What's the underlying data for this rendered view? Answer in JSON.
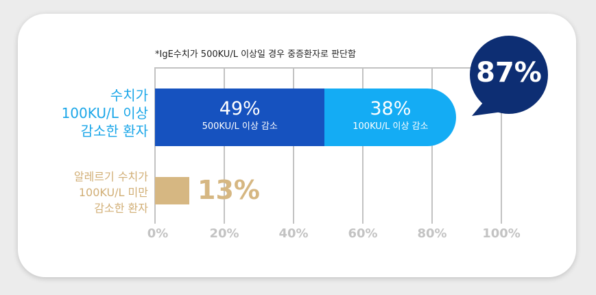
{
  "note": "*IgE수치가 500KU/L 이상일 경우 중증환자로 판단함",
  "colors": {
    "dark_blue": "#1652bf",
    "light_blue": "#14acf4",
    "tan": "#d6b782",
    "bubble": "#0d2e73",
    "label_blue": "#1aa6e8"
  },
  "chart_data": {
    "type": "bar",
    "orientation": "horizontal",
    "stacked": true,
    "xlim": [
      0,
      100
    ],
    "ticks": [
      "0%",
      "20%",
      "40%",
      "60%",
      "80%",
      "100%"
    ],
    "grid": true,
    "rows": [
      {
        "label_lines": [
          "수치가",
          "100KU/L 이상",
          "감소한 환자"
        ],
        "segments": [
          {
            "value": 49,
            "value_label": "49%",
            "sub_label": "500KU/L 이상 감소"
          },
          {
            "value": 38,
            "value_label": "38%",
            "sub_label": "100KU/L 이상 감소"
          }
        ]
      },
      {
        "label_lines": [
          "알레르기 수치가",
          "100KU/L 미만",
          "감소한 환자"
        ],
        "value": 13,
        "value_label": "13%"
      }
    ],
    "callout": "87%"
  }
}
